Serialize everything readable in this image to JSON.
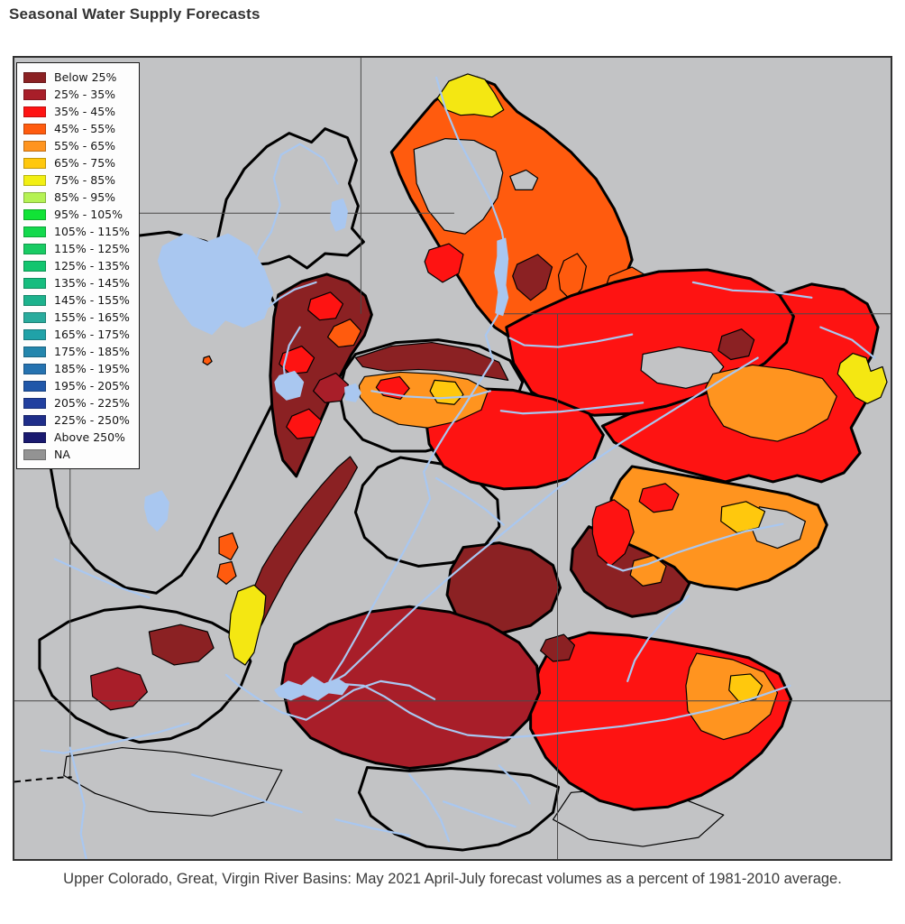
{
  "page": {
    "title": "Seasonal Water Supply Forecasts",
    "caption": "Upper Colorado, Great, Virgin River Basins: May 2021 April-July forecast volumes as a percent of 1981-2010 average."
  },
  "legend": {
    "entries": [
      {
        "label": "Below 25%",
        "color": "#8b2123"
      },
      {
        "label": "25% -  35%",
        "color": "#a81e29"
      },
      {
        "label": "35% -  45%",
        "color": "#fe1312"
      },
      {
        "label": "45% -  55%",
        "color": "#ff5b0e"
      },
      {
        "label": "55% -  65%",
        "color": "#ff941f"
      },
      {
        "label": "65% -  75%",
        "color": "#ffc80d"
      },
      {
        "label": "75% -  85%",
        "color": "#f2ef13"
      },
      {
        "label": "85% -  95%",
        "color": "#b5f254"
      },
      {
        "label": "95% - 105%",
        "color": "#11e336"
      },
      {
        "label": "105% - 115%",
        "color": "#13d94d"
      },
      {
        "label": "115% - 125%",
        "color": "#18cb63"
      },
      {
        "label": "125% - 135%",
        "color": "#13c56f"
      },
      {
        "label": "135% - 145%",
        "color": "#17bd7f"
      },
      {
        "label": "145% - 155%",
        "color": "#1db28d"
      },
      {
        "label": "155% - 165%",
        "color": "#2aab9d"
      },
      {
        "label": "165% - 175%",
        "color": "#20a2a8"
      },
      {
        "label": "175% - 185%",
        "color": "#2486ad"
      },
      {
        "label": "185% - 195%",
        "color": "#2572b0"
      },
      {
        "label": "195% - 205%",
        "color": "#2057a9"
      },
      {
        "label": "205% - 225%",
        "color": "#21409f"
      },
      {
        "label": "225% - 250%",
        "color": "#1e2d89"
      },
      {
        "label": "Above 250%",
        "color": "#19196f"
      },
      {
        "label": "NA",
        "color": "#939393"
      }
    ]
  },
  "map": {
    "background": "#c2c3c5",
    "na_fill": "#c2c3c5",
    "water_color": "#a9c7f0",
    "grid_color": "#4a4a4a",
    "boundary_color": "#000000",
    "regions": [
      {
        "n": "great-salt-lake-desert-basin",
        "f": "gray",
        "s": 2,
        "p": "55,235 90,213 130,199 172,194 212,204 246,220 267,241 286,266 300,296 306,332 296,368 281,398 264,432 245,470 226,506 206,546 186,576 158,596 124,590 90,570 64,540 48,500 40,454 42,404 48,352 50,298"
      },
      {
        "n": "virgin-river-basin",
        "f": "gray",
        "s": 2,
        "p": "28,648 60,628 100,615 140,611 180,617 220,629 252,647 263,672 252,700 230,726 204,746 174,758 139,762 104,752 69,735 42,710 28,680"
      },
      {
        "n": "escalante-basin",
        "f": "gray",
        "s": 2,
        "p": "393,790 440,794 486,791 530,794 575,799 606,812 600,840 574,862 539,876 499,882 459,878 424,864 397,844 384,818"
      },
      {
        "n": "bottomleft-subbasin",
        "f": "gray",
        "s": 1,
        "p": "58,778 120,768 180,773 240,783 298,793 280,828 220,844 150,839 90,819 55,799"
      },
      {
        "n": "bottomright-subbasin",
        "f": "gray",
        "s": 1,
        "p": "620,818 680,813 740,823 790,843 762,868 700,878 640,870 600,848"
      },
      {
        "n": "bear-river-basin",
        "f": "gray",
        "s": 2,
        "p": "226,204 236,158 256,124 281,99 306,84 331,94 346,79 371,89 381,114 373,140 383,165 376,190 389,205 371,220 346,218 326,234 306,221 283,229 258,231 241,221"
      },
      {
        "n": "uinta-basin-base",
        "f": "gray",
        "s": 2,
        "p": "380,330 425,317 472,314 518,321 552,337 566,361 556,390 530,412 495,428 458,438 420,438 388,425 368,402 362,372 368,347"
      },
      {
        "n": "price-sanrafael-basin",
        "f": "gray",
        "s": 2,
        "p": "430,445 475,452 512,468 538,492 540,522 520,548 487,562 450,566 415,556 390,534 380,506 388,476 405,456"
      },
      {
        "n": "fremont-basin",
        "f": "#8b2123",
        "s": 2,
        "p": "500,545 540,540 575,548 600,565 608,590 598,615 575,632 545,640 515,636 492,620 482,598 486,570"
      },
      {
        "n": "upper-green-basin",
        "f": "#ff5b0e",
        "s": 2,
        "p": "420,105 445,75 468,48 492,30 515,22 535,30 546,45 560,60 590,80 620,105 648,135 668,168 682,200 688,225 678,248 655,268 630,283 605,293 578,303 555,313 535,300 515,276 496,246 477,216 459,186 441,156 429,130"
      },
      {
        "n": "upper-green-yellow-cap",
        "f": "#f4e712",
        "s": 1,
        "p": "471,45 484,26 505,18 524,24 535,40 545,58 532,66 512,63 497,64 481,58"
      },
      {
        "n": "upper-green-gray-hole",
        "f": "gray",
        "s": 1,
        "p": "445,102 480,90 512,92 536,104 544,128 538,156 522,180 502,196 479,192 461,170 448,140"
      },
      {
        "n": "upper-green-gray-notch",
        "f": "gray",
        "s": 1,
        "p": "552,132 570,125 583,134 577,147 558,147"
      },
      {
        "n": "border-maroon-basin",
        "f": "#8b2123",
        "s": 1,
        "p": "560,230 583,219 599,233 592,257 575,270 560,257 555,243"
      },
      {
        "n": "border-orange-strip",
        "f": "#ff5b0e",
        "s": 1,
        "p": "612,226 627,218 637,232 632,257 620,270 608,258 606,242"
      },
      {
        "n": "border-orange-blob",
        "f": "#ff5b0e",
        "s": 1,
        "p": "663,243 688,233 708,245 703,267 686,280 666,272 658,257"
      },
      {
        "n": "blacksfork-red",
        "f": "#fe1312",
        "s": 1,
        "p": "462,214 484,207 500,219 495,240 477,250 461,239 457,227"
      },
      {
        "n": "yampa-white-basin",
        "f": "#fe1312",
        "s": 2,
        "p": "548,300 580,283 620,265 668,250 718,238 772,236 820,246 852,264 868,288 860,317 836,340 802,360 766,375 726,388 686,396 646,398 608,391 576,372 556,340"
      },
      {
        "n": "yampa-gray-hole",
        "f": "gray",
        "s": 1,
        "p": "700,330 740,322 776,328 790,344 778,360 748,368 716,362 698,348"
      },
      {
        "n": "yampa-maroon-spot",
        "f": "#8b2123",
        "s": 1,
        "p": "788,310 810,302 824,314 818,332 798,336 784,326"
      },
      {
        "n": "colorado-headwaters-basin",
        "f": "#fe1312",
        "s": 2,
        "p": "852,264 888,252 924,258 950,274 962,300 955,332 940,358 948,384 932,412 942,440 924,462 899,472 872,465 845,472 818,465 792,472 765,465 738,458 712,450 690,440 668,428 655,410 686,396 726,388 766,375 802,360 836,340 860,317 868,288"
      },
      {
        "n": "headwaters-orange-cluster",
        "f": "#ff941f",
        "s": 1,
        "p": "778,352 822,342 862,347 900,357 916,377 906,402 880,417 850,427 820,422 790,410 775,387 770,367"
      },
      {
        "n": "right-edge-yellow",
        "f": "#f4e712",
        "s": 1,
        "p": "920,340 934,329 949,334 954,349 967,344 972,361 965,378 950,385 937,378 927,364 917,352"
      },
      {
        "n": "gunnison-basin",
        "f": "#ff941f",
        "s": 2,
        "p": "688,455 730,462 775,470 820,478 862,486 895,498 905,520 895,545 870,565 840,582 805,592 768,588 732,578 700,565 675,545 662,520 665,490 675,470"
      },
      {
        "n": "gunnison-gray-patch",
        "f": "gray",
        "s": 1,
        "p": "830,500 860,505 881,516 875,536 850,546 827,538 819,518"
      },
      {
        "n": "gunnison-gold-patch",
        "f": "#ffc80d",
        "s": 1,
        "p": "788,500 815,494 836,505 829,523 805,529 787,516"
      },
      {
        "n": "gunnison-red-patch",
        "f": "#fe1312",
        "s": 1,
        "p": "700,480 725,474 740,486 733,503 712,506 696,494"
      },
      {
        "n": "dolores-maroon-band",
        "f": "#8b2123",
        "s": 2,
        "p": "640,522 672,536 705,551 735,567 752,585 742,605 715,618 688,622 660,612 635,594 620,570 622,547"
      },
      {
        "n": "center-red-band",
        "f": "#fe1312",
        "s": 1,
        "p": "648,500 668,492 684,504 690,528 680,552 664,566 650,554 644,530 644,514"
      },
      {
        "n": "center-orange-bit",
        "f": "#ff941f",
        "s": 1,
        "p": "690,560 712,554 726,566 720,584 700,588 686,576"
      },
      {
        "n": "desolation-red-block",
        "f": "#fe1312",
        "s": 2,
        "p": "466,378 510,368 555,370 600,380 640,396 656,420 645,448 618,468 582,478 545,480 508,472 478,455 462,430 458,400"
      },
      {
        "n": "san-juan-basin",
        "f": "#fe1312",
        "s": 2,
        "p": "600,652 640,640 685,643 730,650 775,658 818,668 852,686 865,714 855,744 832,774 800,801 765,821 728,834 690,837 652,827 618,807 592,779 575,747 575,711 585,680"
      },
      {
        "n": "san-juan-maroon-spot",
        "f": "#8b2123",
        "s": 1,
        "p": "592,648 612,642 624,654 618,670 600,672 586,660"
      },
      {
        "n": "san-juan-orange-east",
        "f": "#ff941f",
        "s": 1,
        "p": "760,663 800,670 835,684 850,707 842,731 818,751 790,759 765,749 750,727 748,699 752,679"
      },
      {
        "n": "san-juan-gold-spot",
        "f": "#ffc80d",
        "s": 1,
        "p": "798,688 820,686 833,699 826,714 808,718 796,704"
      },
      {
        "n": "sevier-basin",
        "f": "#a81e29",
        "s": 2,
        "p": "312,653 350,631 395,617 440,611 485,617 528,631 562,651 582,677 585,707 572,737 548,761 515,777 478,787 440,791 402,785 365,774 330,757 305,729 298,697 302,674"
      },
      {
        "n": "sevier-maroon-chain",
        "f": "#8b2123",
        "s": 1,
        "p": "250,640 258,616 266,592 276,568 290,545 306,522 324,498 342,476 360,456 374,444 382,456 370,478 354,502 336,528 318,554 302,580 288,606 276,630 264,650"
      },
      {
        "n": "upper-sevier-yellow",
        "f": "#f4e712",
        "s": 1,
        "p": "249,594 267,587 280,599 278,620 272,641 267,662 257,676 245,668 239,645 241,619"
      },
      {
        "n": "sevier-orange-1",
        "f": "#ff5b0e",
        "s": 1,
        "p": "228,534 243,529 249,545 241,559 228,552"
      },
      {
        "n": "sevier-orange-2",
        "f": "#ff5b0e",
        "s": 1,
        "p": "229,564 242,561 247,577 236,586 226,578"
      },
      {
        "n": "virgin-crimson-patch",
        "f": "#a81e29",
        "s": 1,
        "p": "85,688 115,679 140,687 148,706 132,722 107,726 87,711"
      },
      {
        "n": "virgin-maroon-patch",
        "f": "#8b2123",
        "s": 1,
        "p": "150,639 185,631 215,639 222,657 205,672 178,676 154,664"
      },
      {
        "n": "wasatch-maroon-base",
        "f": "#8b2123",
        "s": 2,
        "p": "294,264 320,249 348,241 372,249 391,265 398,286 390,309 375,331 362,356 350,383 338,411 326,439 314,466 299,448 291,419 287,389 285,354 287,318 289,289"
      },
      {
        "n": "wasatch-red-1",
        "f": "#fe1312",
        "s": 1,
        "p": "330,269 352,261 366,274 358,290 340,292 327,281"
      },
      {
        "n": "wasatch-red-2",
        "f": "#fe1312",
        "s": 1,
        "p": "299,329 320,321 334,334 326,350 307,352 295,341"
      },
      {
        "n": "wasatch-crimson-1",
        "f": "#a81e29",
        "s": 1,
        "p": "340,359 358,351 372,364 364,382 346,384 333,371"
      },
      {
        "n": "wasatch-red-3",
        "f": "#fe1312",
        "s": 1,
        "p": "309,399 328,391 342,404 334,422 315,424 303,411"
      },
      {
        "n": "wasatch-orange-1",
        "f": "#ff5b0e",
        "s": 1,
        "p": "356,299 374,291 386,304 378,320 361,322 349,311"
      },
      {
        "n": "uinta-maroon-band",
        "f": "#8b2123",
        "s": 1,
        "p": "380,334 420,321 465,317 505,324 540,339 550,359 520,354 485,349 450,347 415,349 388,344"
      },
      {
        "n": "uinta-orange-cluster",
        "f": "#ff941f",
        "s": 1,
        "p": "390,355 430,350 470,352 505,358 528,370 520,392 492,405 460,412 428,408 400,395 385,378 384,365"
      },
      {
        "n": "uinta-gold-spot",
        "f": "#ffc80d",
        "s": 1,
        "p": "468,359 491,361 500,375 490,386 471,384 463,371"
      },
      {
        "n": "uinta-red-spot",
        "f": "#fe1312",
        "s": 1,
        "p": "408,359 429,355 440,368 430,380 411,376 403,367"
      },
      {
        "n": "tiny-orange-dot",
        "f": "#ff5b0e",
        "s": 1,
        "p": "211,334 217,332 220,338 215,342 210,339"
      }
    ],
    "grid_lines": [
      {
        "n": "lat-line-north-left",
        "p": [
          136,
          173,
          490,
          173
        ]
      },
      {
        "n": "lat-line-north-right",
        "p": [
          545,
          285,
          976,
          285
        ]
      },
      {
        "n": "lat-line-south",
        "p": [
          0,
          716,
          976,
          716
        ]
      },
      {
        "n": "lon-line-upper",
        "p": [
          386,
          0,
          386,
          285
        ]
      },
      {
        "n": "lon-line-lower-east",
        "p": [
          605,
          285,
          605,
          892
        ]
      },
      {
        "n": "lon-line-lower-west",
        "p": [
          62,
          440,
          62,
          803
        ]
      }
    ],
    "state_line": {
      "n": "state-border-dashed",
      "p": "0,806 30,803 55,801 64,801"
    },
    "rivers": [
      {
        "n": "bear-river",
        "p": "360,140 344,112 318,96 297,108 289,134 296,164 286,194 273,214 266,234"
      },
      {
        "n": "weber-river",
        "p": "336,250 312,258 295,268 282,278"
      },
      {
        "n": "jordan-river",
        "p": "318,300 306,320 300,344 302,360"
      },
      {
        "n": "green-river",
        "p": "470,22 480,56 494,90 512,124 530,158 543,193 549,228 546,260 538,287 525,309 533,337 516,364 499,391 483,414 469,437 456,461 463,491 449,521 433,551 416,581 399,611 383,641 366,671 351,694"
      },
      {
        "n": "yampa-river",
        "p": "688,308 648,316 606,322 568,320 552,312"
      },
      {
        "n": "white-river",
        "p": "700,384 655,389 608,394 566,396 542,393"
      },
      {
        "n": "duchesne-river",
        "p": "398,371 436,377 473,379 508,377 530,371"
      },
      {
        "n": "colorado-river",
        "p": "828,334 790,357 752,381 715,404 678,427 642,451 608,477 575,504 542,531 510,557 478,584 448,611 418,639 392,664 368,687 352,696"
      },
      {
        "n": "gunnison-river",
        "p": "856,519 815,527 775,539 738,551 705,564 678,571 661,564"
      },
      {
        "n": "san-juan-river",
        "p": "864,699 820,714 772,727 725,737 678,744 632,749 588,754 545,757 505,754 470,744 440,729 412,711 389,699 364,697"
      },
      {
        "n": "dolores-river",
        "p": "751,599 728,621 706,647 691,671 683,694"
      },
      {
        "n": "sevier-river",
        "p": "468,714 440,699 408,694 378,704 352,721 325,737 298,729 272,714 250,699 236,687"
      },
      {
        "n": "virgin-river",
        "p": "194,741 160,751 125,759 88,767 55,774 30,771"
      },
      {
        "n": "virgin-river-lower",
        "p": "62,768 70,800 78,832 74,864 80,892"
      },
      {
        "n": "sw-stream",
        "p": "45,558 80,574 115,589 150,601"
      },
      {
        "n": "bottom-stream-1",
        "p": "198,798 240,813 280,828 320,840"
      },
      {
        "n": "bottom-stream-2",
        "p": "358,848 400,858 440,866"
      },
      {
        "n": "bottom-stream-3",
        "p": "478,828 520,843 558,856"
      },
      {
        "n": "west-desert-stream",
        "p": "70,298 95,318 110,344 105,374"
      },
      {
        "n": "price-river",
        "p": "470,468 500,486 525,503 545,520"
      },
      {
        "n": "escalante-river",
        "p": "440,798 460,823 475,848 484,872"
      },
      {
        "n": "dirty-devil-river",
        "p": "540,788 560,808 574,830"
      },
      {
        "n": "ne-stream-1",
        "p": "756,250 800,259 845,261 888,267"
      },
      {
        "n": "ne-stream-2",
        "p": "898,300 933,314 958,334"
      }
    ],
    "lakes": [
      {
        "n": "great-salt-lake",
        "p": "165,210 190,196 215,205 238,196 262,210 278,235 288,262 278,290 255,300 235,292 220,308 198,298 180,274 166,246 160,226"
      },
      {
        "n": "utah-lake",
        "p": "295,354 312,349 322,361 318,377 303,381 292,371 290,361"
      },
      {
        "n": "bear-lake",
        "p": "354,161 366,157 371,171 368,189 358,193 352,179"
      },
      {
        "n": "flaming-gorge",
        "p": "538,204 547,201 550,224 546,247 550,267 544,287 536,284 539,261 535,239 538,221"
      },
      {
        "n": "lake-powell",
        "p": "290,704 305,694 320,699 332,689 345,697 360,691 372,699 365,709 350,707 338,715 322,709 308,715 295,711"
      },
      {
        "n": "strawberry-reservoir",
        "p": "368,367 380,363 386,373 380,383 369,381"
      },
      {
        "n": "sevier-lake",
        "p": "146,489 164,482 172,495 170,514 159,527 149,517 145,501"
      }
    ]
  }
}
